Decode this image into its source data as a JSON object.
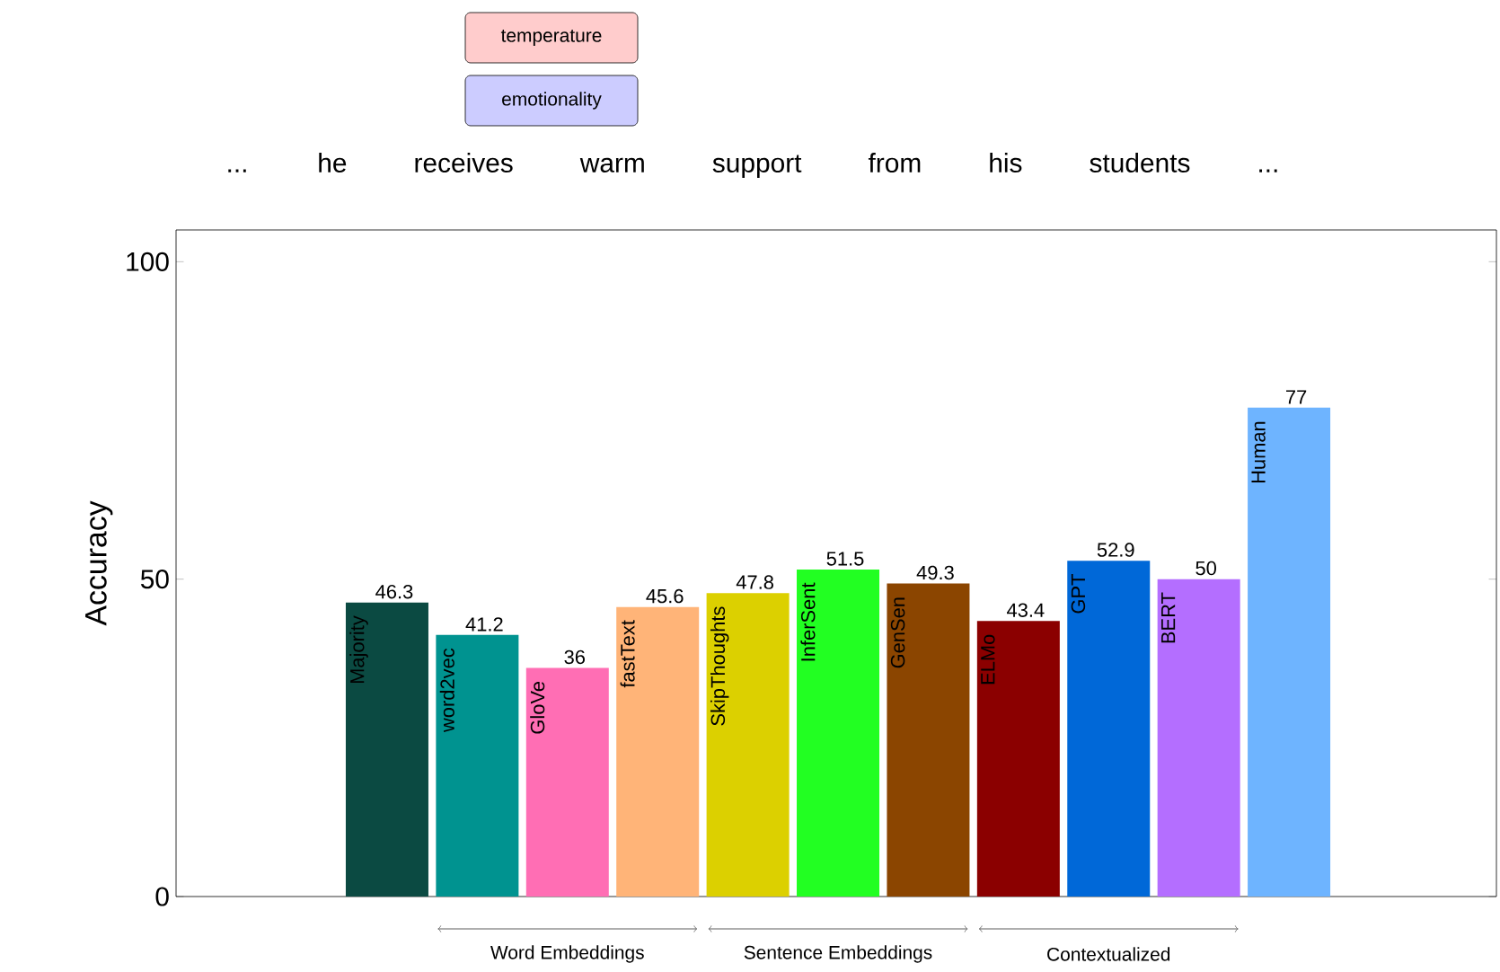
{
  "chart_data": {
    "type": "bar",
    "ylabel": "Accuracy",
    "categories": [
      "Majority",
      "word2vec",
      "GloVe",
      "fastText",
      "SkipThoughts",
      "InferSent",
      "GenSen",
      "ELMo",
      "GPT",
      "BERT",
      "Human"
    ],
    "values": [
      46.3,
      41.2,
      36,
      45.6,
      47.8,
      51.5,
      49.3,
      43.4,
      52.9,
      50,
      77
    ],
    "colors": [
      "#0b4a42",
      "#009390",
      "#ff6eb4",
      "#ffb478",
      "#dcd000",
      "#22ff22",
      "#8b4500",
      "#8b0000",
      "#0068d8",
      "#b46eff",
      "#6eb4ff"
    ],
    "ylim": [
      0,
      105
    ],
    "yticks": [
      0,
      50,
      100
    ],
    "data_labels": true,
    "annotations": [
      "temperature",
      "emotionality",
      "... he receives warm support from his students ...",
      "Word Embeddings",
      "Sentence Embeddings",
      "Contextualized"
    ]
  }
}
